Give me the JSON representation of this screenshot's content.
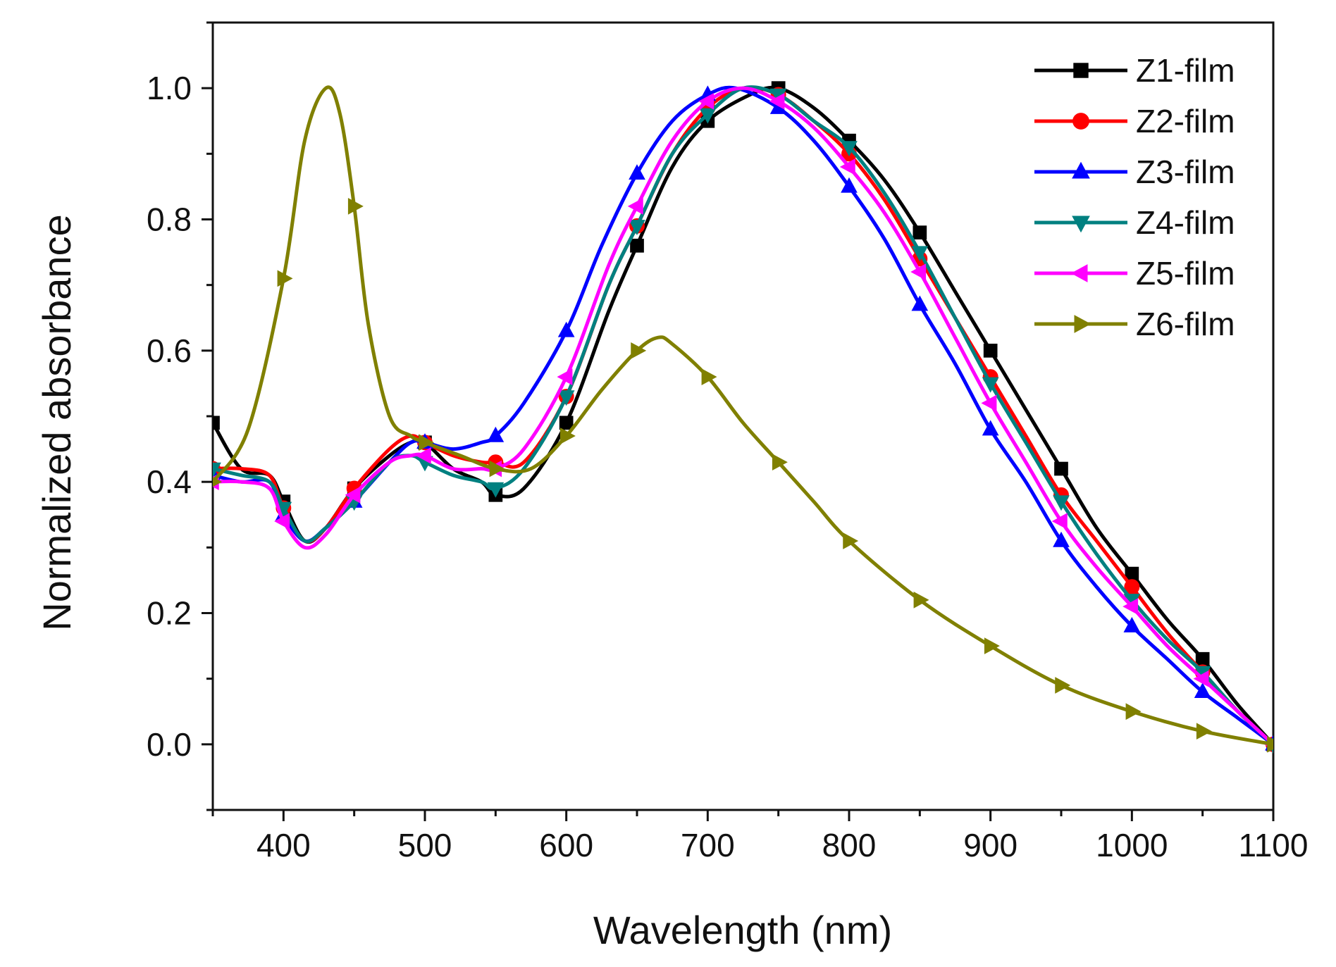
{
  "chart_data": {
    "type": "line",
    "title": "",
    "xlabel": "Wavelength (nm)",
    "ylabel": "Normalized absorbance",
    "xlim": [
      350,
      1100
    ],
    "ylim": [
      -0.1,
      1.1
    ],
    "xticks": [
      400,
      500,
      600,
      700,
      800,
      900,
      1000,
      1100
    ],
    "xtick_labels": [
      "400",
      "500",
      "600",
      "700",
      "800",
      "900",
      "1000",
      "1100"
    ],
    "yticks": [
      0.0,
      0.2,
      0.4,
      0.6,
      0.8,
      1.0
    ],
    "ytick_labels": [
      "0.0",
      "0.2",
      "0.4",
      "0.6",
      "0.8",
      "1.0"
    ],
    "grid": false,
    "legend_position": "top-right",
    "series": [
      {
        "name": "Z1-film",
        "color": "#000000",
        "marker": "square",
        "x": [
          350,
          370,
          390,
          400,
          415,
          430,
          450,
          475,
          490,
          500,
          520,
          540,
          550,
          570,
          600,
          630,
          650,
          675,
          700,
          730,
          750,
          775,
          800,
          825,
          850,
          875,
          900,
          925,
          950,
          975,
          1000,
          1025,
          1050,
          1075,
          1100
        ],
        "y": [
          0.49,
          0.42,
          0.41,
          0.37,
          0.31,
          0.33,
          0.39,
          0.44,
          0.46,
          0.46,
          0.42,
          0.4,
          0.38,
          0.39,
          0.49,
          0.66,
          0.76,
          0.88,
          0.95,
          0.99,
          1.0,
          0.97,
          0.92,
          0.86,
          0.78,
          0.69,
          0.6,
          0.51,
          0.42,
          0.33,
          0.26,
          0.19,
          0.13,
          0.06,
          0.0
        ],
        "marker_x": [
          350,
          400,
          450,
          500,
          550,
          600,
          650,
          700,
          750,
          800,
          850,
          900,
          950,
          1000,
          1050,
          1100
        ]
      },
      {
        "name": "Z2-film",
        "color": "#ff0000",
        "marker": "circle",
        "x": [
          350,
          370,
          390,
          400,
          415,
          430,
          450,
          475,
          490,
          500,
          520,
          540,
          550,
          570,
          600,
          630,
          650,
          675,
          700,
          725,
          750,
          775,
          800,
          825,
          850,
          875,
          900,
          925,
          950,
          975,
          1000,
          1025,
          1050,
          1075,
          1100
        ],
        "y": [
          0.42,
          0.42,
          0.41,
          0.36,
          0.31,
          0.33,
          0.39,
          0.45,
          0.47,
          0.46,
          0.44,
          0.43,
          0.43,
          0.43,
          0.53,
          0.7,
          0.79,
          0.9,
          0.97,
          1.0,
          0.99,
          0.95,
          0.9,
          0.83,
          0.74,
          0.65,
          0.56,
          0.47,
          0.38,
          0.31,
          0.24,
          0.17,
          0.11,
          0.05,
          0.0
        ],
        "marker_x": [
          350,
          400,
          450,
          500,
          550,
          600,
          650,
          700,
          750,
          800,
          850,
          900,
          950,
          1000,
          1050,
          1100
        ]
      },
      {
        "name": "Z3-film",
        "color": "#0000ff",
        "marker": "triangle-up",
        "x": [
          350,
          370,
          390,
          400,
          415,
          430,
          450,
          475,
          490,
          500,
          520,
          540,
          550,
          570,
          600,
          625,
          650,
          675,
          700,
          720,
          750,
          775,
          800,
          825,
          850,
          875,
          900,
          925,
          950,
          975,
          1000,
          1025,
          1050,
          1075,
          1100
        ],
        "y": [
          0.41,
          0.4,
          0.4,
          0.35,
          0.31,
          0.33,
          0.37,
          0.43,
          0.46,
          0.46,
          0.45,
          0.46,
          0.47,
          0.52,
          0.63,
          0.76,
          0.87,
          0.95,
          0.99,
          1.0,
          0.97,
          0.92,
          0.85,
          0.77,
          0.67,
          0.58,
          0.48,
          0.4,
          0.31,
          0.24,
          0.18,
          0.13,
          0.08,
          0.04,
          0.0
        ],
        "marker_x": [
          350,
          400,
          450,
          500,
          550,
          600,
          650,
          700,
          750,
          800,
          850,
          900,
          950,
          1000,
          1050,
          1100
        ]
      },
      {
        "name": "Z4-film",
        "color": "#008080",
        "marker": "triangle-down",
        "x": [
          350,
          370,
          390,
          400,
          415,
          430,
          450,
          475,
          490,
          500,
          520,
          540,
          550,
          570,
          600,
          630,
          650,
          675,
          700,
          725,
          750,
          775,
          800,
          825,
          850,
          875,
          900,
          925,
          950,
          975,
          1000,
          1025,
          1050,
          1075,
          1100
        ],
        "y": [
          0.42,
          0.41,
          0.4,
          0.36,
          0.31,
          0.33,
          0.37,
          0.43,
          0.44,
          0.43,
          0.41,
          0.4,
          0.39,
          0.42,
          0.53,
          0.7,
          0.79,
          0.9,
          0.96,
          1.0,
          0.99,
          0.95,
          0.91,
          0.84,
          0.75,
          0.65,
          0.55,
          0.46,
          0.37,
          0.29,
          0.22,
          0.16,
          0.11,
          0.05,
          0.0
        ],
        "marker_x": [
          350,
          400,
          450,
          500,
          550,
          600,
          650,
          700,
          750,
          800,
          850,
          900,
          950,
          1000,
          1050,
          1100
        ]
      },
      {
        "name": "Z5-film",
        "color": "#ff00ff",
        "marker": "triangle-left",
        "x": [
          350,
          370,
          390,
          400,
          415,
          430,
          450,
          475,
          490,
          500,
          520,
          540,
          550,
          570,
          600,
          630,
          650,
          675,
          700,
          725,
          750,
          775,
          800,
          825,
          850,
          875,
          900,
          925,
          950,
          975,
          1000,
          1025,
          1050,
          1075,
          1100
        ],
        "y": [
          0.4,
          0.4,
          0.39,
          0.34,
          0.3,
          0.32,
          0.38,
          0.43,
          0.44,
          0.44,
          0.42,
          0.42,
          0.42,
          0.45,
          0.56,
          0.73,
          0.82,
          0.92,
          0.98,
          1.0,
          0.98,
          0.94,
          0.88,
          0.81,
          0.72,
          0.62,
          0.52,
          0.43,
          0.34,
          0.27,
          0.21,
          0.15,
          0.1,
          0.05,
          0.0
        ],
        "marker_x": [
          350,
          400,
          450,
          500,
          550,
          600,
          650,
          700,
          750,
          800,
          850,
          900,
          950,
          1000,
          1050,
          1100
        ]
      },
      {
        "name": "Z6-film",
        "color": "#808000",
        "marker": "triangle-right",
        "x": [
          350,
          375,
          400,
          415,
          430,
          440,
          450,
          460,
          475,
          490,
          500,
          525,
          550,
          575,
          600,
          625,
          650,
          665,
          675,
          700,
          725,
          750,
          775,
          800,
          850,
          900,
          950,
          1000,
          1050,
          1100
        ],
        "y": [
          0.4,
          0.48,
          0.71,
          0.92,
          1.0,
          0.96,
          0.82,
          0.64,
          0.5,
          0.47,
          0.46,
          0.44,
          0.42,
          0.42,
          0.47,
          0.54,
          0.6,
          0.62,
          0.61,
          0.56,
          0.49,
          0.43,
          0.37,
          0.31,
          0.22,
          0.15,
          0.09,
          0.05,
          0.02,
          0.0
        ],
        "marker_x": [
          350,
          400,
          450,
          500,
          550,
          600,
          650,
          700,
          750,
          800,
          850,
          900,
          950,
          1000,
          1050,
          1100
        ]
      }
    ]
  }
}
